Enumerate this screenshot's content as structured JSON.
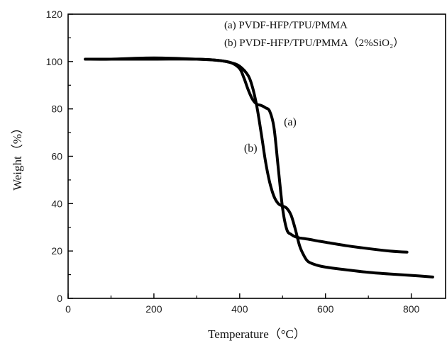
{
  "chart_data": {
    "type": "line",
    "title": "",
    "xlabel": "Temperature（°C）",
    "ylabel": "Weight（%）",
    "xlim": [
      0,
      880
    ],
    "ylim": [
      0,
      120
    ],
    "xticks": [
      0,
      200,
      400,
      600,
      800
    ],
    "yticks": [
      0,
      20,
      40,
      60,
      80,
      100,
      120
    ],
    "grid": false,
    "legend": {
      "placement": "top-right",
      "entries": [
        "(a) PVDF-HFP/TPU/PMMA",
        "(b) PVDF-HFP/TPU/PMMA（2%SiO₂）"
      ]
    },
    "series": [
      {
        "name": "(a)",
        "x": [
          40,
          100,
          200,
          300,
          350,
          380,
          400,
          410,
          420,
          430,
          440,
          450,
          460,
          470,
          480,
          490,
          500,
          510,
          520,
          530,
          540,
          560,
          580,
          600,
          650,
          700,
          750,
          790
        ],
        "y": [
          101,
          101,
          101,
          101,
          100.5,
          99.5,
          97,
          93,
          88,
          84,
          82,
          81.5,
          80.5,
          79,
          72,
          55,
          38,
          29,
          27,
          26,
          25.5,
          25,
          24.3,
          23.7,
          22.2,
          21,
          20,
          19.5
        ]
      },
      {
        "name": "(b)",
        "x": [
          40,
          100,
          200,
          300,
          350,
          380,
          400,
          420,
          430,
          440,
          450,
          460,
          470,
          480,
          490,
          500,
          510,
          520,
          530,
          540,
          550,
          560,
          580,
          600,
          650,
          700,
          750,
          800,
          850
        ],
        "y": [
          101,
          101,
          101.5,
          101,
          100.5,
          99.5,
          98,
          94,
          89,
          81,
          70,
          58,
          49,
          43,
          40,
          39,
          38,
          35,
          29,
          22,
          18,
          15.5,
          14,
          13.2,
          12,
          11,
          10.3,
          9.7,
          9
        ]
      }
    ],
    "annotations": [
      "(a)",
      "(b)"
    ]
  }
}
